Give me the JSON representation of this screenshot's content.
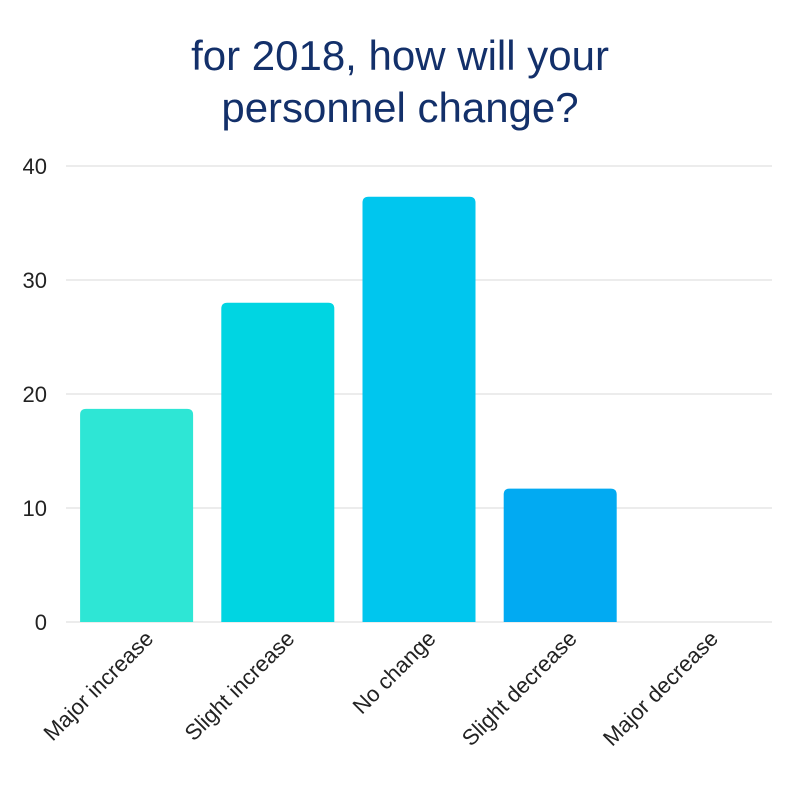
{
  "chart_data": {
    "type": "bar",
    "title_lines": [
      "for 2018, how will your",
      "personnel change?"
    ],
    "categories": [
      "Major increase",
      "Slight increase",
      "No change",
      "Slight decrease",
      "Major decrease"
    ],
    "values": [
      18.7,
      28,
      37.3,
      11.7,
      0
    ],
    "ylim": [
      0,
      40
    ],
    "yticks": [
      0,
      10,
      20,
      30,
      40
    ],
    "xlabel": "",
    "ylabel": "",
    "grid": true,
    "legend": "none",
    "colors": [
      "#2ee6d5",
      "#00d5e2",
      "#00c6ee",
      "#02aaf2",
      "#0190e6"
    ],
    "title_color": "#13306a",
    "grid_color": "#d9d9d9"
  }
}
